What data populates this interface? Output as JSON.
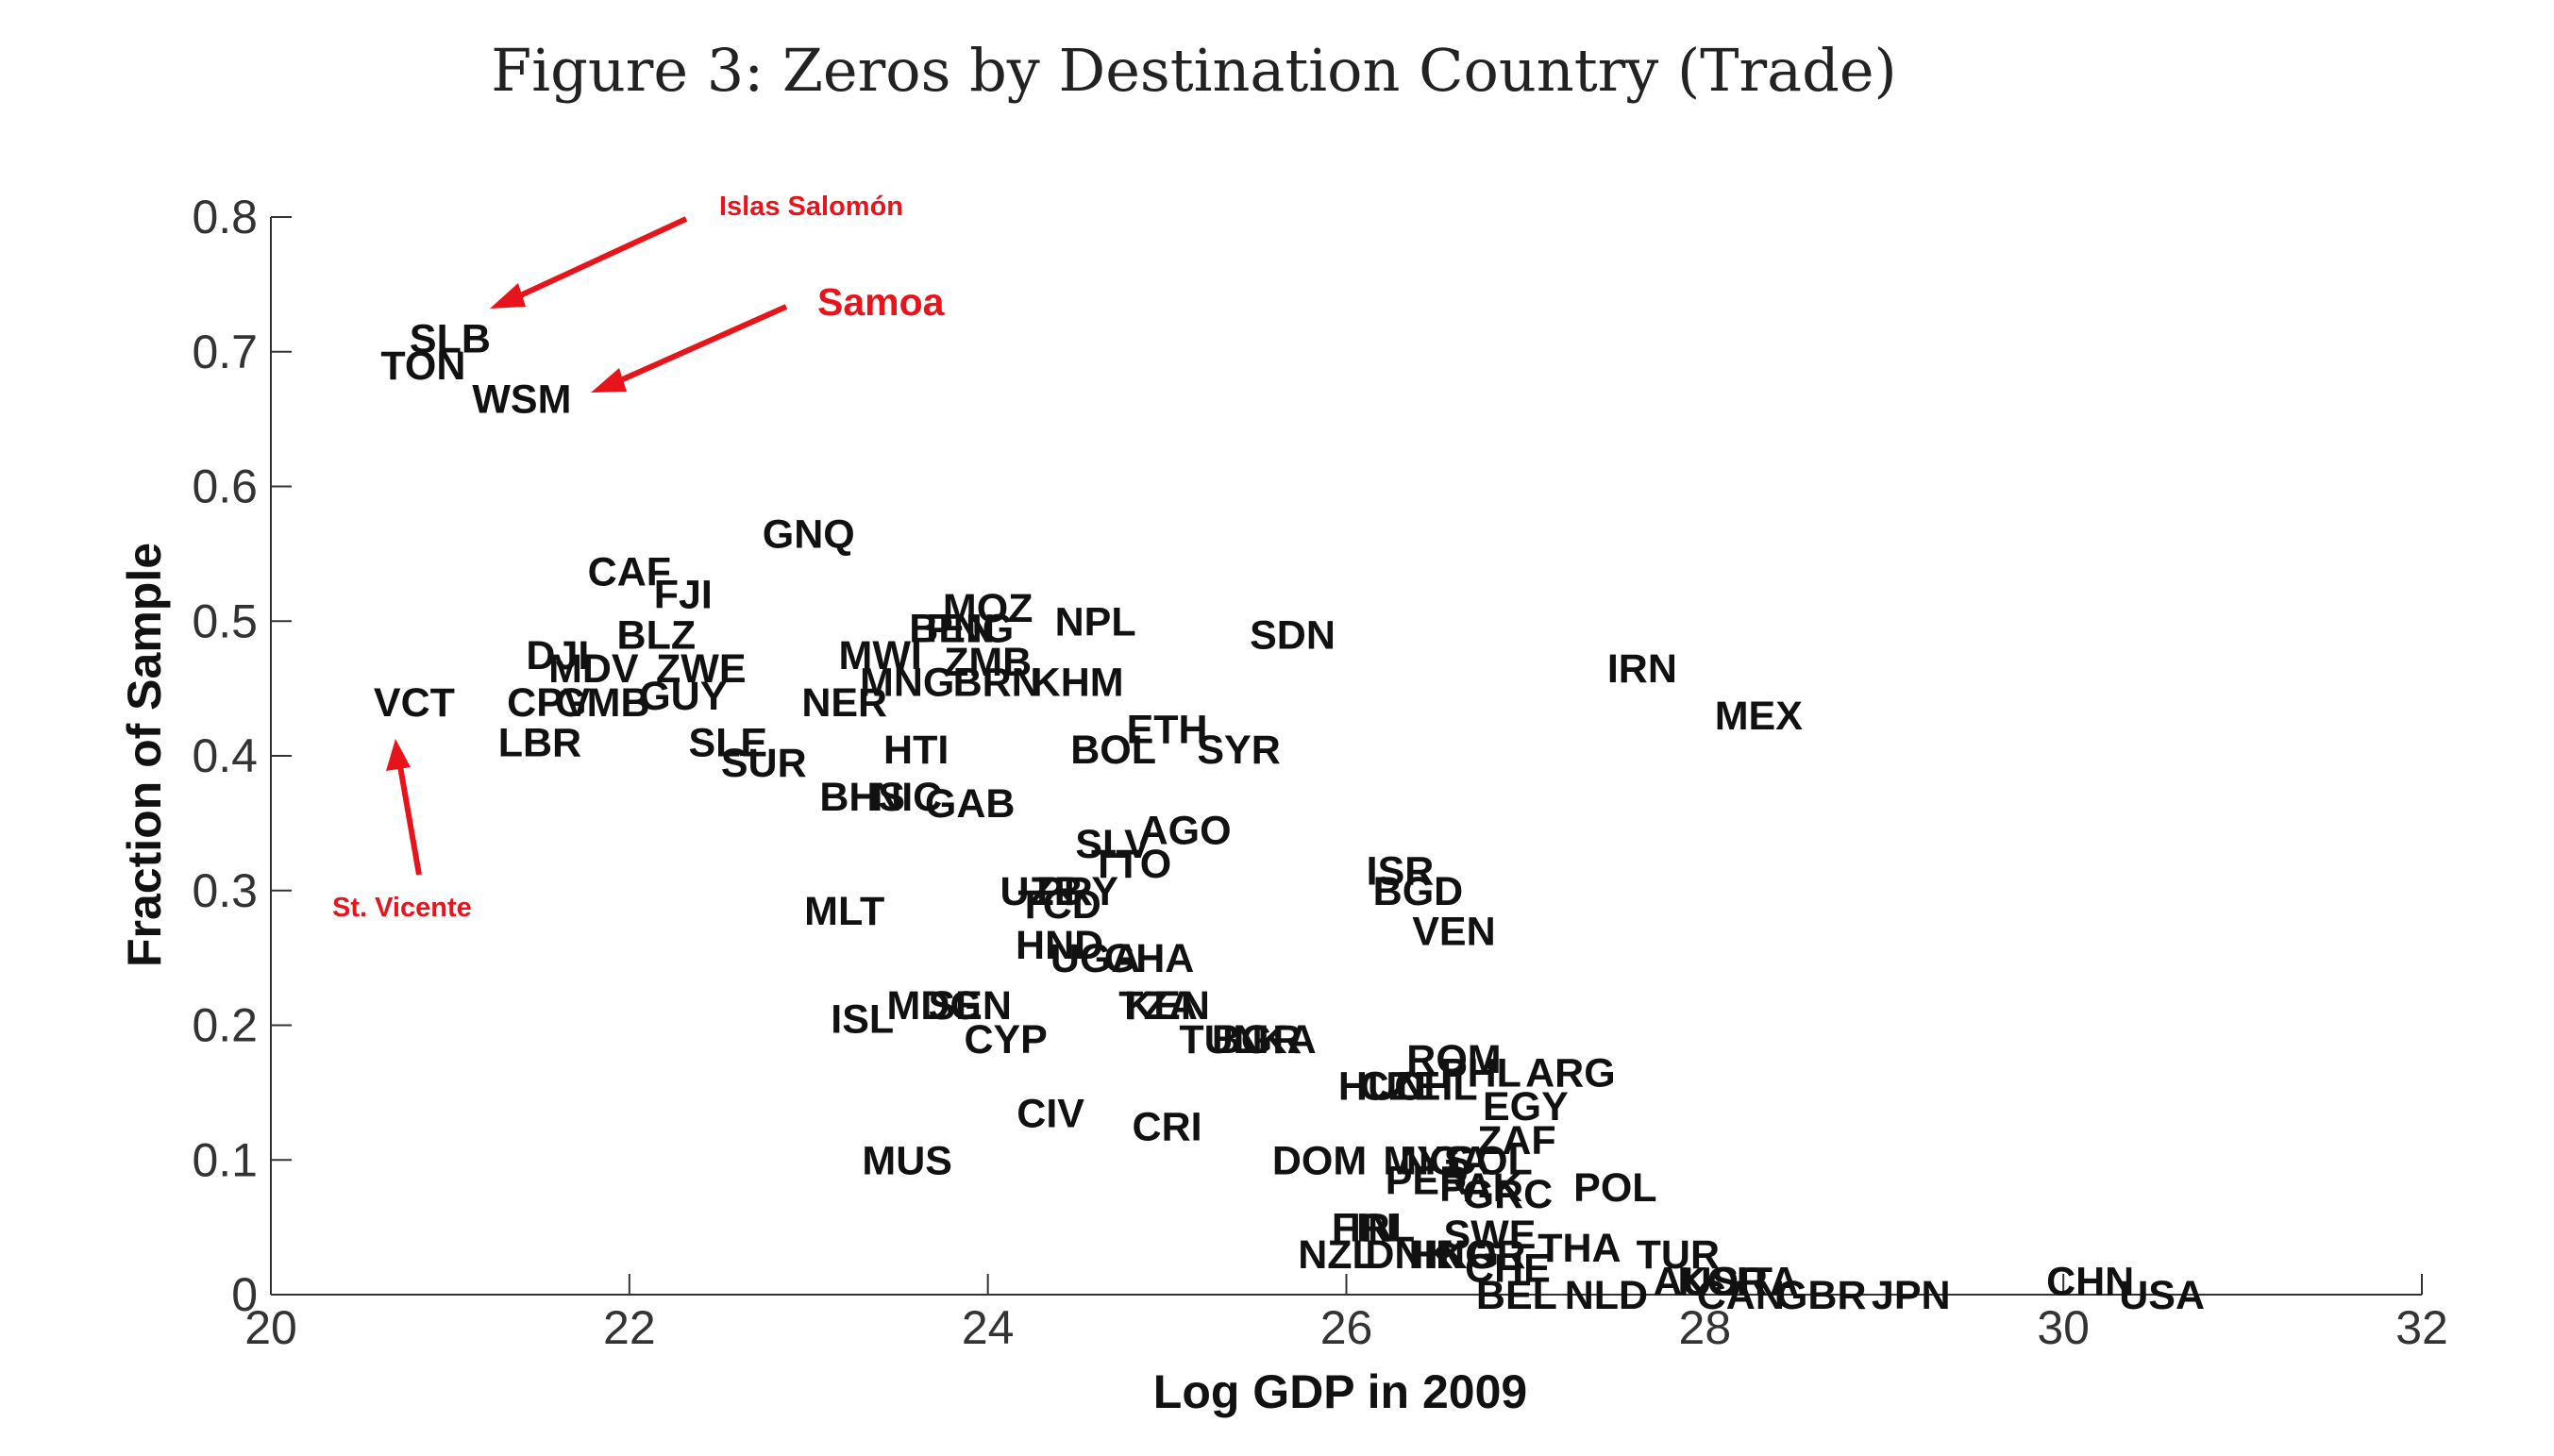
{
  "page": {
    "title": "Figure 3: Zeros by Destination Country (Trade)"
  },
  "chart_data": {
    "type": "scatter",
    "title": "Figure 3: Zeros by Destination Country (Trade)",
    "xlabel": "Log GDP in 2009",
    "ylabel": "Fraction of Sample",
    "xlim": [
      20,
      32
    ],
    "ylim": [
      0,
      0.8
    ],
    "xticks": [
      "20",
      "22",
      "24",
      "26",
      "28",
      "30",
      "32"
    ],
    "yticks": [
      "0",
      "0.1",
      "0.2",
      "0.3",
      "0.4",
      "0.5",
      "0.6",
      "0.7",
      "0.8"
    ],
    "grid": false,
    "marker": "country-code text labels",
    "points": [
      {
        "label": "SLB",
        "x": 21.0,
        "y": 0.71
      },
      {
        "label": "TON",
        "x": 20.85,
        "y": 0.69
      },
      {
        "label": "WSM",
        "x": 21.4,
        "y": 0.665
      },
      {
        "label": "GNQ",
        "x": 23.0,
        "y": 0.565
      },
      {
        "label": "CAF",
        "x": 22.0,
        "y": 0.537
      },
      {
        "label": "FJI",
        "x": 22.3,
        "y": 0.52
      },
      {
        "label": "BLZ",
        "x": 22.15,
        "y": 0.49
      },
      {
        "label": "DJI",
        "x": 21.6,
        "y": 0.475
      },
      {
        "label": "MDV",
        "x": 21.8,
        "y": 0.465
      },
      {
        "label": "ZWE",
        "x": 22.4,
        "y": 0.465
      },
      {
        "label": "GUY",
        "x": 22.3,
        "y": 0.445
      },
      {
        "label": "CPV",
        "x": 21.55,
        "y": 0.44
      },
      {
        "label": "GMB",
        "x": 21.85,
        "y": 0.44
      },
      {
        "label": "VCT",
        "x": 20.8,
        "y": 0.44
      },
      {
        "label": "LBR",
        "x": 21.5,
        "y": 0.41
      },
      {
        "label": "SLE",
        "x": 22.55,
        "y": 0.41
      },
      {
        "label": "SUR",
        "x": 22.75,
        "y": 0.395
      },
      {
        "label": "NER",
        "x": 23.2,
        "y": 0.44
      },
      {
        "label": "MOZ",
        "x": 24.0,
        "y": 0.51
      },
      {
        "label": "BEN",
        "x": 23.8,
        "y": 0.495
      },
      {
        "label": "PNG",
        "x": 23.9,
        "y": 0.495
      },
      {
        "label": "NPL",
        "x": 24.6,
        "y": 0.5
      },
      {
        "label": "MWI",
        "x": 23.4,
        "y": 0.475
      },
      {
        "label": "ZMB",
        "x": 24.0,
        "y": 0.47
      },
      {
        "label": "MNG",
        "x": 23.55,
        "y": 0.455
      },
      {
        "label": "BRN",
        "x": 24.05,
        "y": 0.455
      },
      {
        "label": "KHM",
        "x": 24.5,
        "y": 0.455
      },
      {
        "label": "SDN",
        "x": 25.7,
        "y": 0.49
      },
      {
        "label": "IRN",
        "x": 27.65,
        "y": 0.465
      },
      {
        "label": "MEX",
        "x": 28.3,
        "y": 0.43
      },
      {
        "label": "ETH",
        "x": 25.0,
        "y": 0.42
      },
      {
        "label": "HTI",
        "x": 23.6,
        "y": 0.405
      },
      {
        "label": "BOL",
        "x": 24.7,
        "y": 0.405
      },
      {
        "label": "SYR",
        "x": 25.4,
        "y": 0.405
      },
      {
        "label": "BHS",
        "x": 23.3,
        "y": 0.37
      },
      {
        "label": "NIC",
        "x": 23.55,
        "y": 0.37
      },
      {
        "label": "GAB",
        "x": 23.9,
        "y": 0.365
      },
      {
        "label": "AGO",
        "x": 25.1,
        "y": 0.345
      },
      {
        "label": "SLV",
        "x": 24.7,
        "y": 0.335
      },
      {
        "label": "TTO",
        "x": 24.8,
        "y": 0.32
      },
      {
        "label": "UZB",
        "x": 24.3,
        "y": 0.3
      },
      {
        "label": "PRY",
        "x": 24.5,
        "y": 0.3
      },
      {
        "label": "TCD",
        "x": 24.4,
        "y": 0.29
      },
      {
        "label": "ISR",
        "x": 26.3,
        "y": 0.315
      },
      {
        "label": "BGD",
        "x": 26.4,
        "y": 0.3
      },
      {
        "label": "VEN",
        "x": 26.6,
        "y": 0.27
      },
      {
        "label": "MLT",
        "x": 23.2,
        "y": 0.285
      },
      {
        "label": "HND",
        "x": 24.4,
        "y": 0.26
      },
      {
        "label": "UGA",
        "x": 24.6,
        "y": 0.25
      },
      {
        "label": "GHA",
        "x": 24.9,
        "y": 0.25
      },
      {
        "label": "ISL",
        "x": 23.3,
        "y": 0.205
      },
      {
        "label": "MDG",
        "x": 23.7,
        "y": 0.215
      },
      {
        "label": "SEN",
        "x": 23.9,
        "y": 0.215
      },
      {
        "label": "CYP",
        "x": 24.1,
        "y": 0.19
      },
      {
        "label": "TZA",
        "x": 24.95,
        "y": 0.215
      },
      {
        "label": "KEN",
        "x": 25.0,
        "y": 0.215
      },
      {
        "label": "TUN",
        "x": 25.3,
        "y": 0.19
      },
      {
        "label": "BGR",
        "x": 25.5,
        "y": 0.19
      },
      {
        "label": "LKA",
        "x": 25.6,
        "y": 0.19
      },
      {
        "label": "ROM",
        "x": 26.6,
        "y": 0.175
      },
      {
        "label": "HUN",
        "x": 26.2,
        "y": 0.155
      },
      {
        "label": "CZE",
        "x": 26.3,
        "y": 0.155
      },
      {
        "label": "CHL",
        "x": 26.5,
        "y": 0.155
      },
      {
        "label": "PHL",
        "x": 26.75,
        "y": 0.165
      },
      {
        "label": "ARG",
        "x": 27.25,
        "y": 0.165
      },
      {
        "label": "EGY",
        "x": 27.0,
        "y": 0.14
      },
      {
        "label": "ZAF",
        "x": 26.95,
        "y": 0.115
      },
      {
        "label": "CIV",
        "x": 24.35,
        "y": 0.135
      },
      {
        "label": "CRI",
        "x": 25.0,
        "y": 0.125
      },
      {
        "label": "MUS",
        "x": 23.55,
        "y": 0.1
      },
      {
        "label": "DOM",
        "x": 25.85,
        "y": 0.1
      },
      {
        "label": "MYS",
        "x": 26.45,
        "y": 0.1
      },
      {
        "label": "NGA",
        "x": 26.55,
        "y": 0.1
      },
      {
        "label": "COL",
        "x": 26.8,
        "y": 0.1
      },
      {
        "label": "PER",
        "x": 26.45,
        "y": 0.085
      },
      {
        "label": "PAK",
        "x": 26.75,
        "y": 0.08
      },
      {
        "label": "GRC",
        "x": 26.9,
        "y": 0.075
      },
      {
        "label": "POL",
        "x": 27.5,
        "y": 0.08
      },
      {
        "label": "IRL",
        "x": 26.2,
        "y": 0.05
      },
      {
        "label": "FIN",
        "x": 26.1,
        "y": 0.05
      },
      {
        "label": "SWE",
        "x": 26.8,
        "y": 0.045
      },
      {
        "label": "THA",
        "x": 27.3,
        "y": 0.035
      },
      {
        "label": "NZL",
        "x": 25.95,
        "y": 0.03
      },
      {
        "label": "DNK",
        "x": 26.35,
        "y": 0.03
      },
      {
        "label": "HKG",
        "x": 26.6,
        "y": 0.03
      },
      {
        "label": "NOR",
        "x": 26.75,
        "y": 0.03
      },
      {
        "label": "CHE",
        "x": 26.9,
        "y": 0.02
      },
      {
        "label": "TUR",
        "x": 27.85,
        "y": 0.03
      },
      {
        "label": "AUS",
        "x": 27.95,
        "y": 0.01
      },
      {
        "label": "KOR",
        "x": 28.1,
        "y": 0.01
      },
      {
        "label": "ITA",
        "x": 28.35,
        "y": 0.01
      },
      {
        "label": "BEL",
        "x": 26.95,
        "y": 0.0
      },
      {
        "label": "NLD",
        "x": 27.45,
        "y": 0.0
      },
      {
        "label": "CAN",
        "x": 28.2,
        "y": 0.0
      },
      {
        "label": "GBR",
        "x": 28.65,
        "y": 0.0
      },
      {
        "label": "JPN",
        "x": 29.15,
        "y": 0.0
      },
      {
        "label": "CHN",
        "x": 30.15,
        "y": 0.01
      },
      {
        "label": "USA",
        "x": 30.55,
        "y": 0.0
      }
    ],
    "annotations": [
      {
        "text": "Islas Salomón",
        "color": "#e8141b"
      },
      {
        "text": "Samoa",
        "color": "#e8141b"
      },
      {
        "text": "St. Vicente",
        "color": "#e8141b"
      }
    ]
  }
}
